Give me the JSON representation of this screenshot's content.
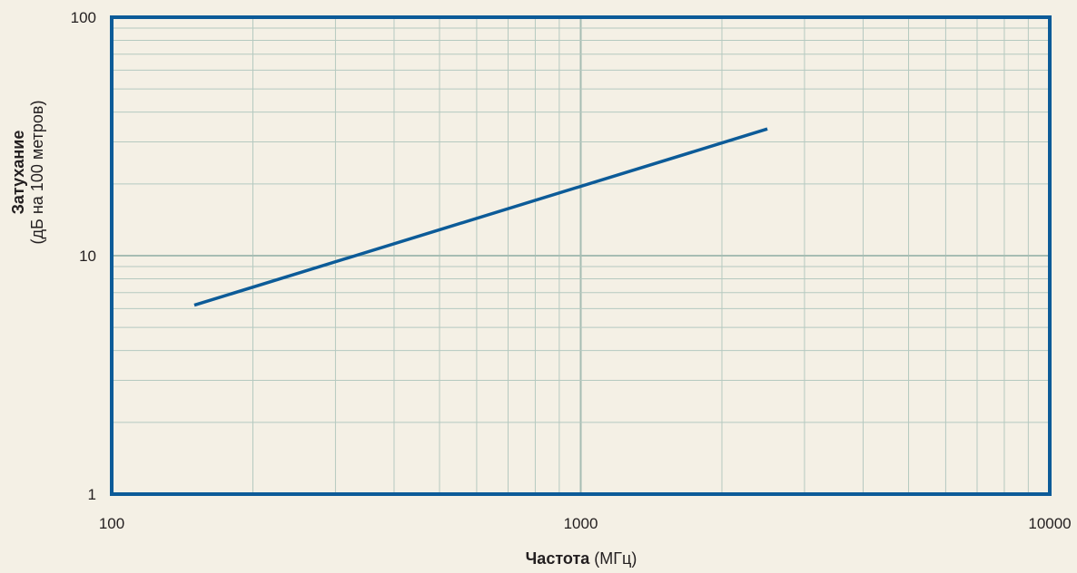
{
  "chart_data": {
    "type": "line",
    "x_scale": "log",
    "y_scale": "log",
    "xlim": [
      100,
      10000
    ],
    "ylim": [
      1,
      100
    ],
    "x_ticks": [
      100,
      1000,
      10000
    ],
    "x_tick_labels": [
      "100",
      "1000",
      "10000"
    ],
    "y_ticks": [
      1,
      10,
      100
    ],
    "y_tick_labels": [
      "1",
      "10",
      "100"
    ],
    "xlabel_bold": "Частота",
    "xlabel_unit": "(МГц)",
    "ylabel_bold": "Затухание",
    "ylabel_unit": "(дБ на 100 метров)",
    "grid": true,
    "series": [
      {
        "x": [
          150,
          2500
        ],
        "y": [
          6.2,
          34
        ]
      }
    ]
  },
  "colors": {
    "background": "#f4f0e5",
    "frame": "#0c5b98",
    "line": "#0c5b98",
    "grid_minor": "#b5c9c0",
    "grid_major": "#a6bdb3"
  }
}
